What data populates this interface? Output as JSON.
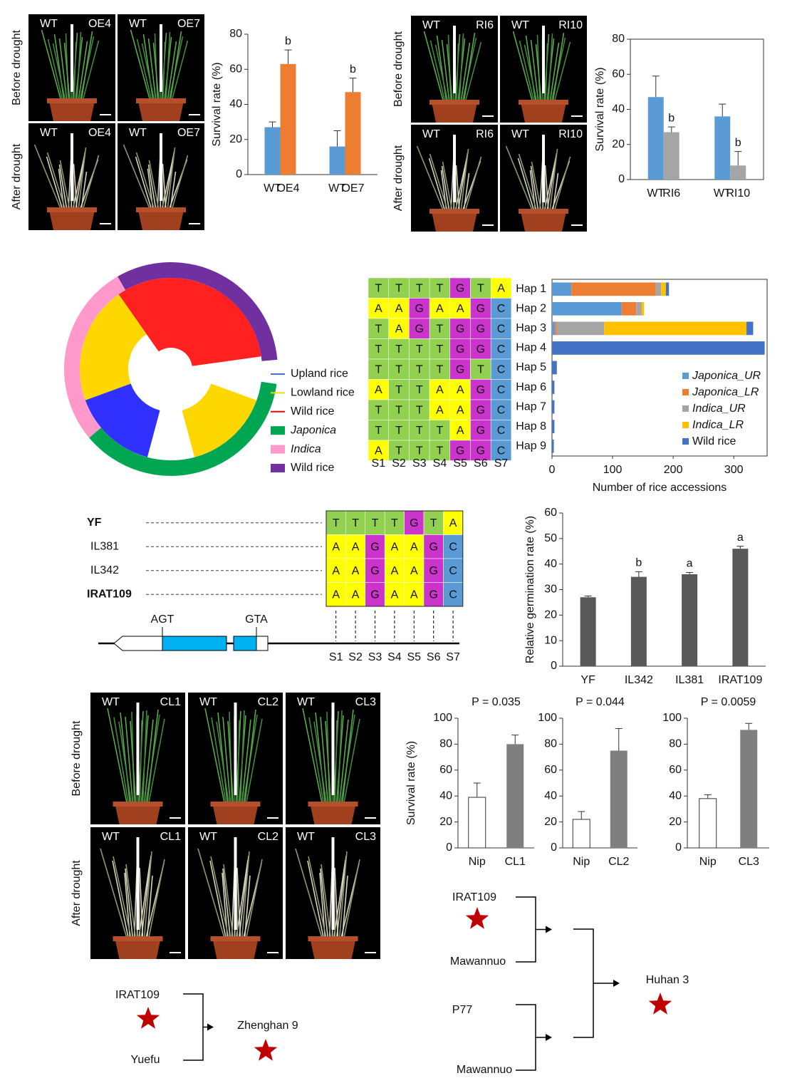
{
  "photo_panels": [
    {
      "rows": [
        {
          "label": "Before drought",
          "tiles": [
            [
              "WT",
              "OE4"
            ],
            [
              "WT",
              "OE7"
            ]
          ]
        },
        {
          "label": "After drought",
          "tiles": [
            [
              "WT",
              "OE4"
            ],
            [
              "WT",
              "OE7"
            ]
          ]
        }
      ]
    },
    {
      "rows": [
        {
          "label": "Before drought",
          "tiles": [
            [
              "WT",
              "RI6"
            ],
            [
              "WT",
              "RI10"
            ]
          ]
        },
        {
          "label": "After drought",
          "tiles": [
            [
              "WT",
              "RI6"
            ],
            [
              "WT",
              "RI10"
            ]
          ]
        }
      ]
    },
    {
      "rows": [
        {
          "label": "Before drought",
          "tiles": [
            [
              "WT",
              "CL1"
            ],
            [
              "WT",
              "CL2"
            ],
            [
              "WT",
              "CL3"
            ]
          ]
        },
        {
          "label": "After drought",
          "tiles": [
            [
              "WT",
              "CL1"
            ],
            [
              "WT",
              "CL2"
            ],
            [
              "WT",
              "CL3"
            ]
          ]
        }
      ]
    }
  ],
  "chart_data": [
    {
      "type": "bar",
      "categories": [
        "WT",
        "OE4",
        "WT",
        "OE7"
      ],
      "values": [
        27,
        63,
        16,
        47
      ],
      "errors": [
        3,
        8,
        9,
        8
      ],
      "annotations": [
        null,
        "b",
        null,
        "b"
      ],
      "colors": [
        "#5b9bd5",
        "#ed7d31",
        "#5b9bd5",
        "#ed7d31"
      ],
      "y_label": "Survival rate (%)",
      "ylim": [
        0,
        80
      ],
      "yticks": [
        0,
        20,
        40,
        60,
        80
      ],
      "frame": false
    },
    {
      "type": "bar",
      "categories": [
        "WT",
        "RI6",
        "WT",
        "RI10"
      ],
      "values": [
        47,
        27,
        36,
        8
      ],
      "errors": [
        12,
        3,
        7,
        8
      ],
      "annotations": [
        null,
        "b",
        null,
        "b"
      ],
      "colors": [
        "#5b9bd5",
        "#a5a5a5",
        "#5b9bd5",
        "#a5a5a5"
      ],
      "y_label": "Survival rate (%)",
      "ylim": [
        0,
        80
      ],
      "yticks": [
        0,
        20,
        40,
        60,
        80
      ],
      "frame": true
    },
    {
      "type": "stacked_bar",
      "orientation": "horizontal",
      "categories": [
        "Hap 1",
        "Hap 2",
        "Hap 3",
        "Hap 4",
        "Hap 5",
        "Hap 6",
        "Hap 7",
        "Hap 8",
        "Hap 9"
      ],
      "series": [
        {
          "name": "Japonica_UR",
          "color": "#5b9bd5",
          "values": [
            32,
            115,
            5,
            0,
            0,
            0,
            0,
            0,
            0
          ]
        },
        {
          "name": "Japonica_LR",
          "color": "#ed7d31",
          "values": [
            139,
            24,
            3,
            0,
            0,
            0,
            0,
            0,
            0
          ]
        },
        {
          "name": "Indica_UR",
          "color": "#a5a5a5",
          "values": [
            9,
            9,
            78,
            0,
            0,
            0,
            0,
            0,
            0
          ]
        },
        {
          "name": "Indica_LR",
          "color": "#ffc000",
          "values": [
            8,
            4,
            235,
            0,
            0,
            0,
            0,
            0,
            0
          ]
        },
        {
          "name": "Wild rice",
          "color": "#4472c4",
          "values": [
            5,
            0,
            11,
            351,
            8,
            4,
            4,
            4,
            3
          ]
        }
      ],
      "x_label": "Number of rice accessions",
      "xlim": [
        0,
        355
      ],
      "xticks": [
        0,
        100,
        200,
        300
      ],
      "legend": "lower right",
      "frame": true
    },
    {
      "type": "bar",
      "categories": [
        "YF",
        "IL342",
        "IL381",
        "IRAT109"
      ],
      "values": [
        27,
        35,
        36,
        46
      ],
      "errors": [
        0.5,
        2,
        0.7,
        1
      ],
      "annotations": [
        null,
        "b",
        "a",
        "a"
      ],
      "colors": [
        "#595959",
        "#595959",
        "#595959",
        "#595959"
      ],
      "y_label": "Relative germination rate (%)",
      "ylim": [
        0,
        60
      ],
      "yticks": [
        0,
        10,
        20,
        30,
        40,
        50,
        60
      ],
      "frame": false
    },
    {
      "type": "bar",
      "title": "P = 0.035",
      "categories": [
        "Nip",
        "CL1"
      ],
      "values": [
        39,
        80
      ],
      "errors": [
        11,
        7
      ],
      "colors": [
        "#ffffff",
        "#7f7f7f"
      ],
      "y_label": "Survival rate (%)",
      "ylim": [
        0,
        100
      ],
      "yticks": [
        0,
        20,
        40,
        60,
        80,
        100
      ],
      "frame": false
    },
    {
      "type": "bar",
      "title": "P = 0.044",
      "categories": [
        "Nip",
        "CL2"
      ],
      "values": [
        22,
        75
      ],
      "errors": [
        6,
        17
      ],
      "colors": [
        "#ffffff",
        "#7f7f7f"
      ],
      "ylim": [
        0,
        100
      ],
      "yticks": [
        0,
        20,
        40,
        60,
        80,
        100
      ],
      "frame": false
    },
    {
      "type": "bar",
      "title": "P = 0.0059",
      "categories": [
        "Nip",
        "CL3"
      ],
      "values": [
        38,
        91
      ],
      "errors": [
        3,
        5
      ],
      "colors": [
        "#ffffff",
        "#7f7f7f"
      ],
      "ylim": [
        0,
        100
      ],
      "yticks": [
        0,
        20,
        40,
        60,
        80,
        100
      ],
      "frame": false
    }
  ],
  "tree_legend": [
    {
      "label": "Upland rice",
      "color": "#4472c4",
      "style": "line",
      "italic": false
    },
    {
      "label": "Lowland rice",
      "color": "#ffd700",
      "style": "line",
      "italic": false
    },
    {
      "label": "Wild rice",
      "color": "#ff0000",
      "style": "line",
      "italic": false
    },
    {
      "label": "Japonica",
      "color": "#00a651",
      "style": "box",
      "italic": true
    },
    {
      "label": "Indica",
      "color": "#ff99cc",
      "style": "box",
      "italic": true
    },
    {
      "label": "Wild rice",
      "color": "#7030a0",
      "style": "box",
      "italic": false
    }
  ],
  "base_colors": {
    "A": "#ffff00",
    "T": "#92d050",
    "G": "#cc33cc",
    "C": "#5b9bd5"
  },
  "haplotype_table": {
    "rows": [
      [
        "T",
        "T",
        "T",
        "T",
        "G",
        "T",
        "A"
      ],
      [
        "A",
        "A",
        "G",
        "A",
        "A",
        "G",
        "C"
      ],
      [
        "T",
        "A",
        "G",
        "T",
        "G",
        "G",
        "C"
      ],
      [
        "T",
        "T",
        "T",
        "T",
        "G",
        "G",
        "C"
      ],
      [
        "T",
        "T",
        "T",
        "T",
        "G",
        "T",
        "C"
      ],
      [
        "A",
        "T",
        "T",
        "A",
        "A",
        "G",
        "C"
      ],
      [
        "T",
        "T",
        "T",
        "A",
        "A",
        "G",
        "C"
      ],
      [
        "T",
        "T",
        "T",
        "T",
        "A",
        "G",
        "C"
      ],
      [
        "A",
        "T",
        "T",
        "T",
        "G",
        "G",
        "C"
      ]
    ],
    "columns": [
      "S1",
      "S2",
      "S3",
      "S4",
      "S5",
      "S6",
      "S7"
    ]
  },
  "lines_table": {
    "names": [
      "YF",
      "IL381",
      "IL342",
      "IRAT109"
    ],
    "bold": [
      true,
      false,
      false,
      true
    ],
    "rows": [
      [
        "T",
        "T",
        "T",
        "T",
        "G",
        "T",
        "A"
      ],
      [
        "A",
        "A",
        "G",
        "A",
        "A",
        "G",
        "C"
      ],
      [
        "A",
        "A",
        "G",
        "A",
        "A",
        "G",
        "C"
      ],
      [
        "A",
        "A",
        "G",
        "A",
        "A",
        "G",
        "C"
      ]
    ]
  },
  "gene_model": {
    "labels": [
      "AGT",
      "GTA"
    ],
    "sites": [
      "S1",
      "S2",
      "S3",
      "S4",
      "S5",
      "S6",
      "S7"
    ]
  },
  "pedigrees": [
    {
      "parents": [
        "IRAT109",
        "Yuefu"
      ],
      "offspring": "Zhenghan 9"
    },
    {
      "crosses": [
        [
          "IRAT109",
          "Mawannuo"
        ],
        [
          "P77",
          "Mawannuo"
        ]
      ],
      "offspring": "Huhan 3"
    }
  ]
}
